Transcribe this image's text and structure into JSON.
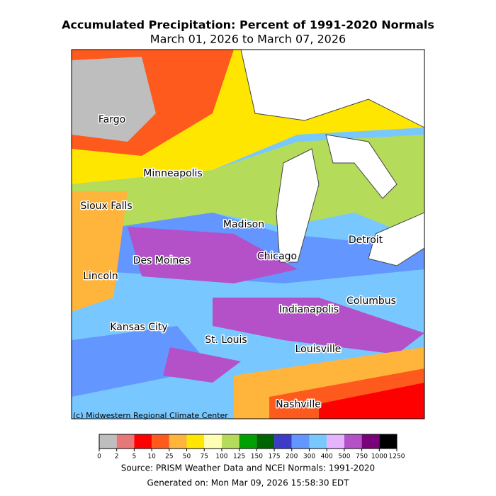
{
  "header": {
    "title": "Accumulated Precipitation: Percent of 1991-2020 Normals",
    "subtitle": "March 01, 2026 to March 07, 2026"
  },
  "map": {
    "cities": [
      "Fargo",
      "Minneapolis",
      "Sioux Falls",
      "Madison",
      "Detroit",
      "Chicago",
      "Des Moines",
      "Lincoln",
      "Columbus",
      "Indianapolis",
      "Kansas City",
      "St. Louis",
      "Louisville",
      "Nashville"
    ],
    "credit": "(c) Midwestern Regional Climate Center"
  },
  "legend": {
    "bins": [
      0,
      2,
      5,
      10,
      25,
      50,
      75,
      100,
      125,
      150,
      175,
      200,
      300,
      400,
      500,
      750,
      1000,
      1250
    ],
    "colors": [
      "#bebebe",
      "#e87878",
      "#ff0000",
      "#ff5a1e",
      "#ffb43c",
      "#ffe600",
      "#ffffb4",
      "#b4dc5a",
      "#00a000",
      "#006400",
      "#3c3cc8",
      "#6496ff",
      "#78c8ff",
      "#e6b4ff",
      "#b450c8",
      "#780078",
      "#000000"
    ]
  },
  "footer": {
    "source": "Source: PRISM Weather Data and NCEI Normals: 1991-2020",
    "generated": "Generated on: Mon Mar 09, 2026 15:58:30 EDT"
  }
}
